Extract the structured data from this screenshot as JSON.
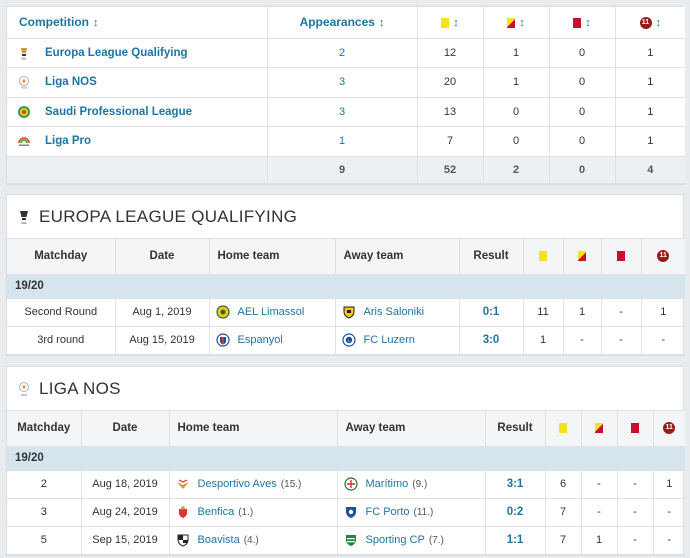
{
  "summary": {
    "headers": {
      "competition": "Competition",
      "appearances": "Appearances",
      "sort_arrow": "↕",
      "goals_icon": "11"
    },
    "rows": [
      {
        "competition": "Europa League Qualifying",
        "logo": "europa-league-logo",
        "appearances": "2",
        "yellow": "12",
        "yellow_red": "1",
        "red": "0",
        "goals": "1"
      },
      {
        "competition": "Liga NOS",
        "logo": "liga-nos-logo",
        "appearances": "3",
        "yellow": "20",
        "yellow_red": "1",
        "red": "0",
        "goals": "1"
      },
      {
        "competition": "Saudi Professional League",
        "logo": "saudi-league-logo",
        "appearances": "3",
        "yellow": "13",
        "yellow_red": "0",
        "red": "0",
        "goals": "1"
      },
      {
        "competition": "Liga Pro",
        "logo": "liga-pro-logo",
        "appearances": "1",
        "yellow": "7",
        "yellow_red": "0",
        "red": "0",
        "goals": "1"
      }
    ],
    "total": {
      "appearances": "9",
      "yellow": "52",
      "yellow_red": "2",
      "red": "0",
      "goals": "4"
    }
  },
  "match_headers": {
    "matchday": "Matchday",
    "date": "Date",
    "home": "Home team",
    "away": "Away team",
    "result": "Result",
    "goals_icon": "11"
  },
  "europa": {
    "title": "EUROPA LEAGUE QUALIFYING",
    "season": "19/20",
    "matches": [
      {
        "matchday": "Second Round",
        "date": "Aug 1, 2019",
        "home": "AEL Limassol",
        "home_pos": "",
        "away": "Aris Saloniki",
        "away_pos": "",
        "result": "0:1",
        "yellow": "11",
        "yellow_red": "1",
        "red": "-",
        "goals": "1"
      },
      {
        "matchday": "3rd round",
        "date": "Aug 15, 2019",
        "home": "Espanyol",
        "home_pos": "",
        "away": "FC Luzern",
        "away_pos": "",
        "result": "3:0",
        "yellow": "1",
        "yellow_red": "-",
        "red": "-",
        "goals": "-"
      }
    ]
  },
  "liganos": {
    "title": "LIGA NOS",
    "season": "19/20",
    "matches": [
      {
        "matchday": "2",
        "date": "Aug 18, 2019",
        "home": "Desportivo Aves",
        "home_pos": "(15.)",
        "away": "Marítimo",
        "away_pos": "(9.)",
        "result": "3:1",
        "yellow": "6",
        "yellow_red": "-",
        "red": "-",
        "goals": "1"
      },
      {
        "matchday": "3",
        "date": "Aug 24, 2019",
        "home": "Benfica",
        "home_pos": "(1.)",
        "away": "FC Porto",
        "away_pos": "(11.)",
        "result": "0:2",
        "yellow": "7",
        "yellow_red": "-",
        "red": "-",
        "goals": "-"
      },
      {
        "matchday": "5",
        "date": "Sep 15, 2019",
        "home": "Boavista",
        "home_pos": "(4.)",
        "away": "Sporting CP",
        "away_pos": "(7.)",
        "result": "1:1",
        "yellow": "7",
        "yellow_red": "1",
        "red": "-",
        "goals": "-"
      }
    ]
  },
  "colors": {
    "link": "#1d75a3",
    "season_bg": "#d6e4ee",
    "yellow_card": "#f4e21a",
    "red_card": "#c8102e"
  }
}
